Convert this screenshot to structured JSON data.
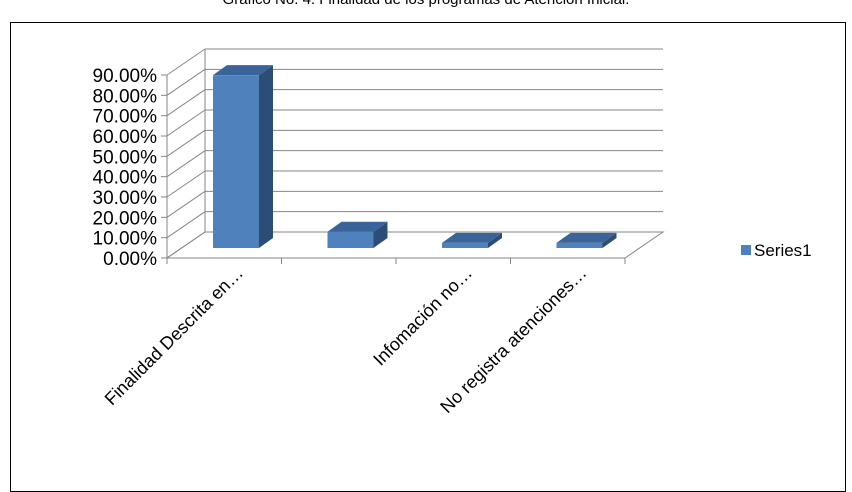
{
  "chart_data": {
    "type": "bar",
    "title": "Grafico No. 4. Finalidad de los programas de Atención Inicial.",
    "categories": [
      "Finalidad Descrita en…",
      "",
      "Infomación no…",
      "No registra atenciones…"
    ],
    "series": [
      {
        "name": "Series1",
        "values": [
          0.85,
          0.08,
          0.025,
          0.025
        ],
        "color": "#4F81BD"
      }
    ],
    "y_ticks": [
      "0.00%",
      "10.00%",
      "20.00%",
      "30.00%",
      "40.00%",
      "50.00%",
      "60.00%",
      "70.00%",
      "80.00%",
      "90.00%"
    ],
    "ylim": [
      0,
      0.9
    ],
    "grid": true,
    "legend": "right",
    "three_d": true
  }
}
